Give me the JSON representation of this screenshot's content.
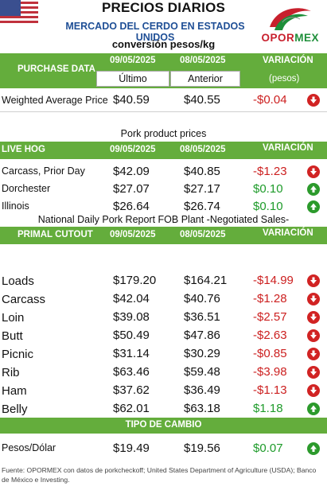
{
  "header": {
    "title": "PRECIOS DIARIOS",
    "subtitle": "MERCADO DEL CERDO EN ESTADOS UNIDOS",
    "conversion": "conversión pesos/kg",
    "logo_pre": "OPOR",
    "logo_post": "MEX"
  },
  "purchase": {
    "label": "PURCHASE DATA",
    "date1": "09/05/2025",
    "date2": "08/05/2025",
    "variation": "VARIACIÓN",
    "last": "Último",
    "previous": "Anterior",
    "unit": "(pesos)",
    "rows": [
      {
        "name": "Weighted Average Price",
        "v1": "$40.59",
        "v2": "$40.55",
        "var": "-$0.04",
        "dir": "down"
      }
    ]
  },
  "pork": {
    "title": "Pork product prices",
    "label": "LIVE HOG",
    "date1": "09/05/2025",
    "date2": "08/05/2025",
    "variation": "VARIACIÓN",
    "rows": [
      {
        "name": "Carcass, Prior Day",
        "v1": "$42.09",
        "v2": "$40.85",
        "var": "-$1.23",
        "dir": "down"
      },
      {
        "name": "Dorchester",
        "v1": "$27.07",
        "v2": "$27.17",
        "var": "$0.10",
        "dir": "up"
      },
      {
        "name": "Illinois",
        "v1": "$26.64",
        "v2": "$26.74",
        "var": "$0.10",
        "dir": "up"
      }
    ]
  },
  "primal": {
    "title": "National Daily Pork Report FOB Plant -Negotiated Sales-",
    "label": "PRIMAL CUTOUT",
    "date1": "09/05/2025",
    "date2": "08/05/2025",
    "variation": "VARIACIÓN",
    "rows": [
      {
        "name": "Loads",
        "v1": "$179.20",
        "v2": "$164.21",
        "var": "-$14.99",
        "dir": "down"
      },
      {
        "name": "Carcass",
        "v1": "$42.04",
        "v2": "$40.76",
        "var": "-$1.28",
        "dir": "down"
      },
      {
        "name": "Loin",
        "v1": "$39.08",
        "v2": "$36.51",
        "var": "-$2.57",
        "dir": "down"
      },
      {
        "name": "Butt",
        "v1": "$50.49",
        "v2": "$47.86",
        "var": "-$2.63",
        "dir": "down"
      },
      {
        "name": "Picnic",
        "v1": "$31.14",
        "v2": "$30.29",
        "var": "-$0.85",
        "dir": "down"
      },
      {
        "name": "Rib",
        "v1": "$63.46",
        "v2": "$59.48",
        "var": "-$3.98",
        "dir": "down"
      },
      {
        "name": "Ham",
        "v1": "$37.62",
        "v2": "$36.49",
        "var": "-$1.13",
        "dir": "down"
      },
      {
        "name": "Belly",
        "v1": "$62.01",
        "v2": "$63.18",
        "var": "$1.18",
        "dir": "up"
      }
    ]
  },
  "exchange": {
    "label": "TIPO DE CAMBIO",
    "rows": [
      {
        "name": "Pesos/Dólar",
        "v1": "$19.49",
        "v2": "$19.56",
        "var": "$0.07",
        "dir": "up"
      }
    ]
  },
  "footer": "Fuente: OPORMEX con datos de porkcheckoff; United States Department of Agriculture (USDA); Banco de México e Investing.",
  "colors": {
    "green": "#64ad3c",
    "negative": "#cc1f1f",
    "positive": "#1e9b2a",
    "subtitle": "#1f4f96"
  }
}
